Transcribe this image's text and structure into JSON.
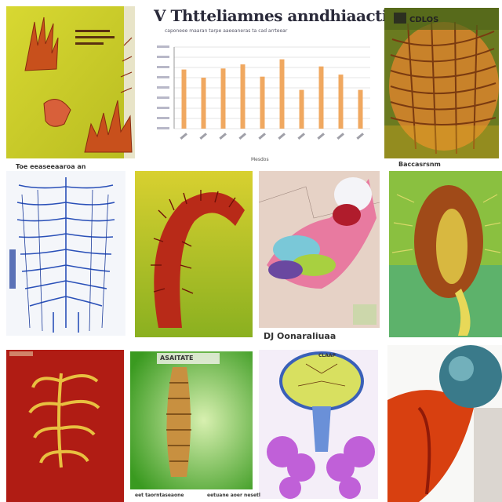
{
  "colors": {
    "bar": "#f0a860",
    "grid": "#e4e4e4",
    "yellow_bg": "#c8cc2a",
    "coral": "#c84a1c",
    "blue_lines": "#2a50b8",
    "green_bg": "#56b830",
    "purple": "#c060d8",
    "red_bg": "#b01c14"
  },
  "chart": {
    "title": "V Thtteliamnes anndhiaaction",
    "subtitle": "caponeee maaran tarpe aaeeaneras ta cad arrteear",
    "xlabel": "Mesdos"
  },
  "chart_data": {
    "type": "bar",
    "categories": [
      "",
      "",
      "",
      "",
      "",
      "",
      "",
      "",
      "",
      ""
    ],
    "values": [
      58,
      50,
      59,
      63,
      51,
      68,
      38,
      61,
      53,
      38
    ],
    "title": "V Thtteliamnes anndhiaaction",
    "xlabel": "Mesdos",
    "ylabel": "",
    "ylim": [
      0,
      80
    ],
    "grid": true
  },
  "captions": {
    "tile_blue": "Toe eeaseeaaroa an",
    "tile_coral_right": "Baccasrsnm",
    "tile_hand": "DJ Oonaraliuaa",
    "tile_green": "ASAITATE",
    "tile_purple_top": "CLAAP",
    "bottom_green": "eet taorntaseaone",
    "bottom_purple": "eetuane aoer nesetl",
    "badge_right_top": "CDLOS"
  },
  "icons": {
    "tile_1": "coral-illustration-icon",
    "tile_3": "fibrous-organism-icon",
    "tile_4": "blue-fiber-diagram-icon",
    "tile_5": "red-tentacle-icon",
    "tile_6": "hand-sculpture-icon",
    "tile_7": "spiked-pod-icon",
    "tile_8": "vertebra-icon",
    "tile_9": "caterpillar-icon",
    "tile_10": "purple-flower-diagram-icon",
    "tile_11": "teal-sphere-icon"
  }
}
